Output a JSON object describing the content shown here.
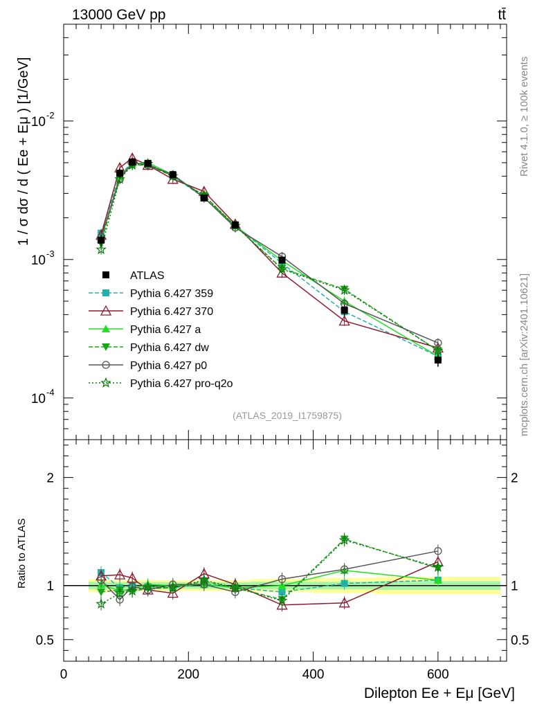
{
  "header": {
    "energy_label": "13000 GeV pp",
    "process_label": "tt̄"
  },
  "side_labels": {
    "rivet": "Rivet 4.1.0, ≥ 100k events",
    "source": "mcplots.cern.ch [arXiv:2401.10621]"
  },
  "analysis_id": "(ATLAS_2019_I1759875)",
  "colors": {
    "atlas": "#000000",
    "p359": "#20b2aa",
    "p370": "#8b1a2e",
    "pa": "#22e022",
    "pdw": "#1aa51a",
    "pp0": "#555555",
    "pq2o": "#0a7a0a",
    "band_inner": "#a8f5a8",
    "band_outer": "#ffff99"
  },
  "chart_data": [
    {
      "type": "line",
      "title": "",
      "ylabel": "1 / σ  dσ / d ( Ee + Eμ ) [1/GeV]",
      "ylog": true,
      "ylim": [
        5e-05,
        0.05
      ],
      "xlim": [
        0,
        710
      ],
      "ytick_labels": [
        "10^-4",
        "10^-3",
        "10^-2"
      ],
      "x": [
        60,
        90,
        110,
        135,
        175,
        225,
        275,
        350,
        450,
        600
      ],
      "reference": {
        "name": "ATLAS",
        "values": [
          0.00138,
          0.0042,
          0.00505,
          0.00495,
          0.0041,
          0.00278,
          0.00178,
          0.00099,
          0.00043,
          0.000188
        ],
        "errors": [
          0.00012,
          0.0003,
          0.0003,
          0.0003,
          0.00022,
          0.00015,
          0.0001,
          6e-05,
          4e-05,
          2e-05
        ]
      },
      "series": [
        {
          "name": "Pythia 6.427 359",
          "key": "p359",
          "marker": "square",
          "dash": "6,3",
          "values": [
            0.00155,
            0.0041,
            0.005,
            0.0049,
            0.004,
            0.0028,
            0.00175,
            0.00094,
            0.00042,
            0.0002
          ]
        },
        {
          "name": "Pythia 6.427 370",
          "key": "p370",
          "marker": "triangle-open",
          "dash": "",
          "values": [
            0.0015,
            0.0046,
            0.0054,
            0.0048,
            0.0038,
            0.0031,
            0.0018,
            0.0008,
            0.00036,
            0.00023
          ]
        },
        {
          "name": "Pythia 6.427 a",
          "key": "pa",
          "marker": "triangle",
          "dash": "",
          "values": [
            0.0014,
            0.004,
            0.0049,
            0.005,
            0.0041,
            0.0028,
            0.00175,
            0.00098,
            0.0005,
            0.0002
          ]
        },
        {
          "name": "Pythia 6.427 dw",
          "key": "pdw",
          "marker": "triangle-down",
          "dash": "6,3",
          "values": [
            0.0013,
            0.004,
            0.0048,
            0.0048,
            0.004,
            0.0029,
            0.00175,
            0.00086,
            0.00061,
            0.00022
          ]
        },
        {
          "name": "Pythia 6.427 p0",
          "key": "pp0",
          "marker": "circle-open",
          "dash": "",
          "values": [
            0.00145,
            0.0038,
            0.005,
            0.0048,
            0.0041,
            0.0028,
            0.0017,
            0.00105,
            0.00048,
            0.00025
          ]
        },
        {
          "name": "Pythia 6.427 pro-q2o",
          "key": "pq2o",
          "marker": "star",
          "dash": "2,3",
          "values": [
            0.00118,
            0.0038,
            0.0048,
            0.0049,
            0.004,
            0.0029,
            0.00175,
            0.00085,
            0.0006,
            0.00022
          ]
        }
      ]
    },
    {
      "type": "line",
      "title": "",
      "ylabel": "Ratio to ATLAS",
      "xlabel": "Dilepton Ee + Eμ [GeV]",
      "ylim": [
        0.3,
        2.35
      ],
      "xlim": [
        0,
        710
      ],
      "yticks": [
        0.5,
        1,
        2
      ],
      "ytick_labels": [
        "0.5",
        "1",
        "2"
      ],
      "xticks": [
        0,
        200,
        400,
        600
      ],
      "xtick_labels": [
        "0",
        "200",
        "400",
        "600"
      ],
      "x": [
        60,
        90,
        110,
        135,
        175,
        225,
        275,
        350,
        450,
        600
      ],
      "band": {
        "x_edges": [
          40,
          70,
          100,
          120,
          150,
          200,
          250,
          300,
          400,
          500,
          700
        ],
        "inner": [
          0.035,
          0.03,
          0.03,
          0.03,
          0.03,
          0.03,
          0.03,
          0.035,
          0.035,
          0.04
        ],
        "outer": [
          0.06,
          0.05,
          0.05,
          0.05,
          0.05,
          0.05,
          0.05,
          0.06,
          0.07,
          0.08
        ]
      },
      "series": [
        {
          "name": "Pythia 6.427 359",
          "key": "p359",
          "marker": "square",
          "dash": "6,3",
          "values": [
            1.12,
            0.98,
            1.0,
            0.99,
            0.98,
            1.02,
            0.98,
            0.94,
            1.02,
            1.05
          ]
        },
        {
          "name": "Pythia 6.427 370",
          "key": "p370",
          "marker": "triangle-open",
          "dash": "",
          "values": [
            1.09,
            1.1,
            1.07,
            0.96,
            0.93,
            1.11,
            1.01,
            0.82,
            0.84,
            1.22
          ]
        },
        {
          "name": "Pythia 6.427 a",
          "key": "pa",
          "marker": "triangle",
          "dash": "",
          "values": [
            1.01,
            0.95,
            0.97,
            1.01,
            1.0,
            1.01,
            0.98,
            1.0,
            1.14,
            1.05
          ]
        },
        {
          "name": "Pythia 6.427 dw",
          "key": "pdw",
          "marker": "triangle-down",
          "dash": "6,3",
          "values": [
            0.94,
            0.96,
            0.95,
            0.97,
            0.98,
            1.04,
            0.98,
            0.87,
            1.43,
            1.16
          ]
        },
        {
          "name": "Pythia 6.427 p0",
          "key": "pp0",
          "marker": "circle-open",
          "dash": "",
          "values": [
            1.05,
            0.87,
            0.99,
            0.96,
            1.01,
            1.01,
            0.94,
            1.06,
            1.15,
            1.32
          ]
        },
        {
          "name": "Pythia 6.427 pro-q2o",
          "key": "pq2o",
          "marker": "star",
          "dash": "2,3",
          "values": [
            0.83,
            0.93,
            0.95,
            0.99,
            0.98,
            1.05,
            0.98,
            0.86,
            1.42,
            1.17
          ]
        }
      ]
    }
  ]
}
